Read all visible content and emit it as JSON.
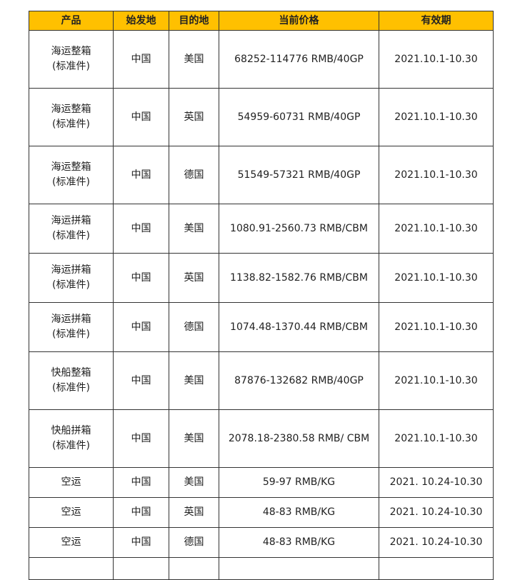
{
  "header_color": "#FFC000",
  "headers": [
    "产品",
    "始发地",
    "目的地",
    "当前价格",
    "有效期"
  ],
  "rows": [
    {
      "product": "海运整箱",
      "note": "(标准件)",
      "origin": "中国",
      "dest": "美国",
      "price": "68252-114776 RMB/40GP",
      "valid": "2021.10.1-10.30"
    },
    {
      "product": "海运整箱",
      "note": "(标准件)",
      "origin": "中国",
      "dest": "英国",
      "price": "54959-60731 RMB/40GP",
      "valid": "2021.10.1-10.30"
    },
    {
      "product": "海运整箱",
      "note": "(标准件)",
      "origin": "中国",
      "dest": "德国",
      "price": "51549-57321 RMB/40GP",
      "valid": "2021.10.1-10.30"
    },
    {
      "product": "海运拼箱",
      "note": "(标准件)",
      "origin": "中国",
      "dest": "美国",
      "price": "1080.91-2560.73 RMB/CBM",
      "valid": "2021.10.1-10.30"
    },
    {
      "product": "海运拼箱",
      "note": "(标准件)",
      "origin": "中国",
      "dest": "英国",
      "price": "1138.82-1582.76 RMB/CBM",
      "valid": "2021.10.1-10.30"
    },
    {
      "product": "海运拼箱",
      "note": "(标准件)",
      "origin": "中国",
      "dest": "德国",
      "price": "1074.48-1370.44 RMB/CBM",
      "valid": "2021.10.1-10.30"
    },
    {
      "product": "快船整箱",
      "note": "(标准件)",
      "origin": "中国",
      "dest": "美国",
      "price": "87876-132682 RMB/40GP",
      "valid": "2021.10.1-10.30"
    },
    {
      "product": "快船拼箱",
      "note": "(标准件)",
      "origin": "中国",
      "dest": "美国",
      "price": "2078.18-2380.58 RMB/ CBM",
      "valid": "2021.10.1-10.30"
    },
    {
      "product": "空运",
      "note": "",
      "origin": "中国",
      "dest": "美国",
      "price": "59-97 RMB/KG",
      "valid": "2021. 10.24-10.30"
    },
    {
      "product": "空运",
      "note": "",
      "origin": "中国",
      "dest": "英国",
      "price": "48-83 RMB/KG",
      "valid": "2021. 10.24-10.30"
    },
    {
      "product": "空运",
      "note": "",
      "origin": "中国",
      "dest": "德国",
      "price": "48-83 RMB/KG",
      "valid": "2021. 10.24-10.30"
    }
  ]
}
